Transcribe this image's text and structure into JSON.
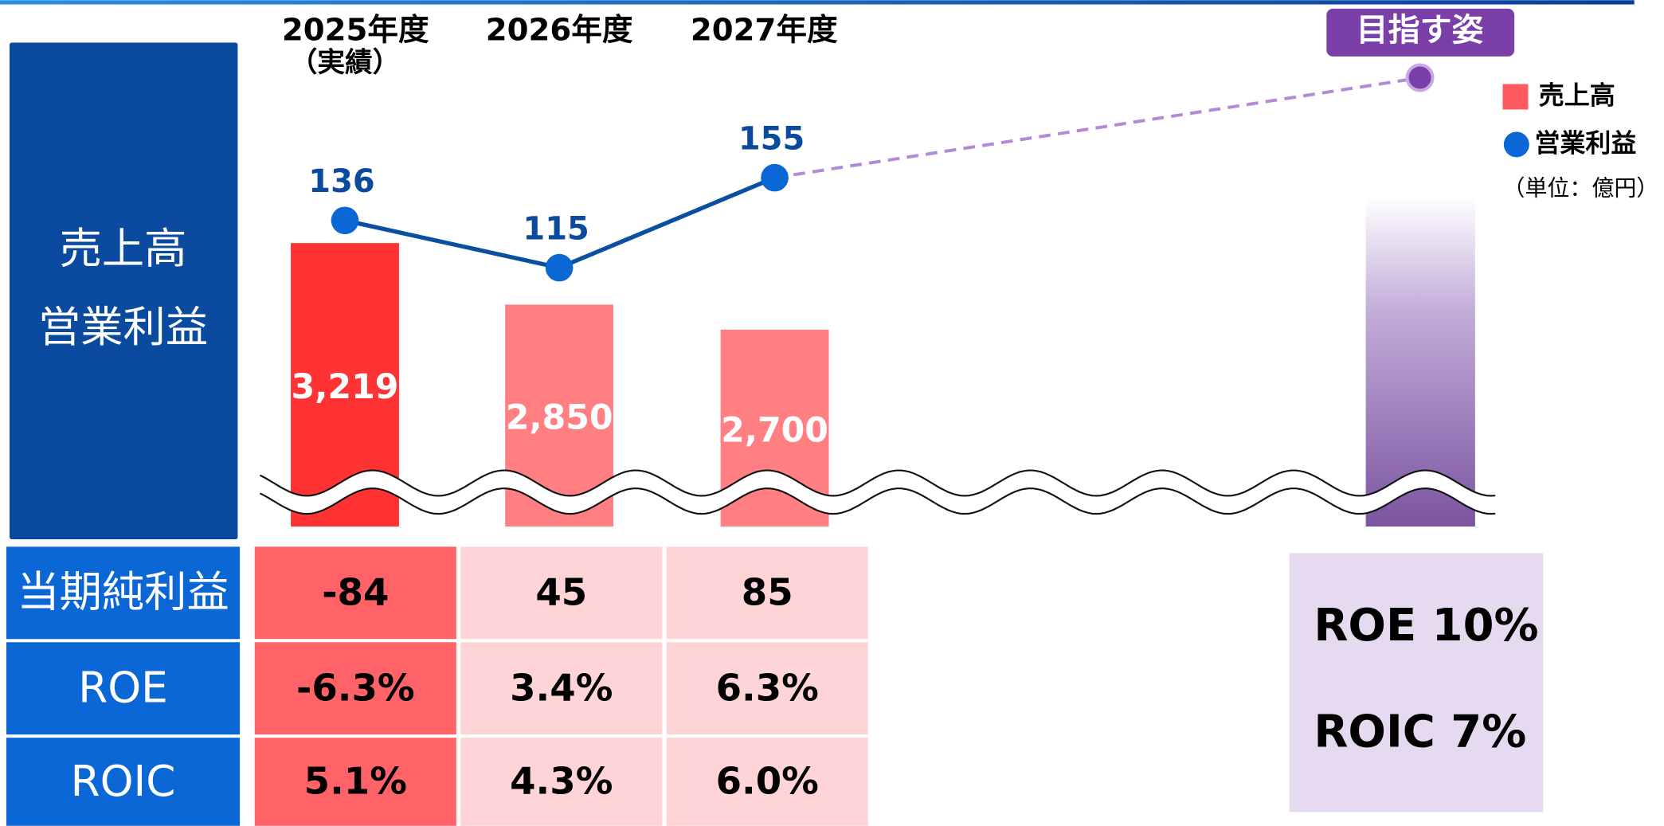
{
  "chart_data": {
    "type": "bar_line",
    "categories": [
      "2025年度",
      "2026年度",
      "2027年度"
    ],
    "category_notes": [
      "（実績）",
      null,
      null
    ],
    "row_header": [
      "売上高",
      "営業利益"
    ],
    "ylim": [
      1520,
      4420
    ],
    "y2lim": [
      0,
      215
    ],
    "series": [
      {
        "name": "売上高",
        "type": "bar",
        "color": "#ff5a5f",
        "colors": [
          "#ff3333",
          "#ff7f83",
          "#ff7f83"
        ],
        "values": [
          3219,
          2850,
          2700
        ],
        "value_labels": [
          "3,219",
          "2,850",
          "2,700"
        ]
      },
      {
        "name": "営業利益",
        "type": "line",
        "axis": "y2",
        "color": "#0a4fa0",
        "marker_color": "#0b66d6",
        "values": [
          136,
          115,
          155
        ]
      }
    ],
    "unit_note": "（単位：億円）",
    "target": {
      "label": "目指す姿",
      "lines": [
        "ROE 10%",
        "ROIC 7%"
      ]
    },
    "table": {
      "rows": [
        {
          "label": "当期純利益",
          "cells": [
            "-84",
            "45",
            "85"
          ]
        },
        {
          "label": "ROE",
          "cells": [
            "-6.3%",
            "3.4%",
            "6.3%"
          ]
        },
        {
          "label": "ROIC",
          "cells": [
            "5.1%",
            "4.3%",
            "6.0%"
          ]
        }
      ]
    }
  }
}
